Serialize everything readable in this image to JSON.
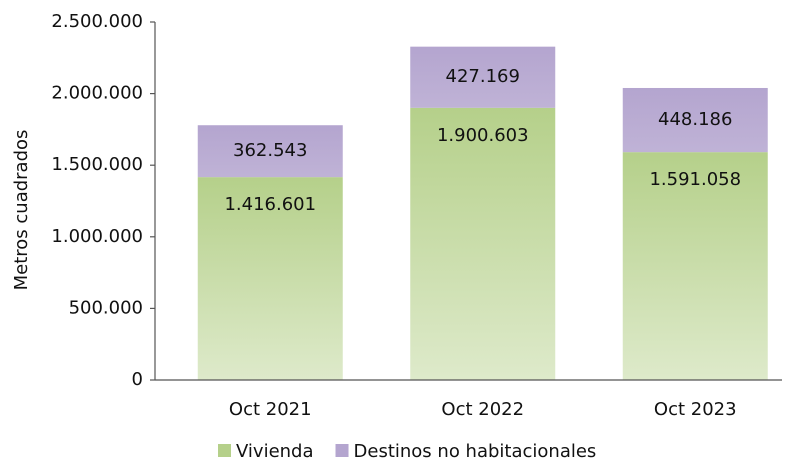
{
  "chart_data": {
    "type": "stacked_bar",
    "y_label": "Metros cuadrados",
    "categories": [
      "Oct 2021",
      "Oct 2022",
      "Oct 2023"
    ],
    "series": [
      {
        "name": "Vivienda",
        "color": "#b5d08a",
        "values": [
          1416601,
          1900603,
          1591058
        ],
        "value_labels": [
          "1.416.601",
          "1.900.603",
          "1.591.058"
        ]
      },
      {
        "name": "Destinos no habitacionales",
        "color": "#b4a5cf",
        "values": [
          362543,
          427169,
          448186
        ],
        "value_labels": [
          "362.543",
          "427.169",
          "448.186"
        ]
      }
    ],
    "ylim": [
      0,
      2500000
    ],
    "yticks": [
      0,
      {
        "value": 500000,
        "label": "500.000"
      },
      {
        "value": 1000000,
        "label": "1.000.000"
      },
      {
        "value": 1500000,
        "label": "1.500.000"
      },
      {
        "value": 2000000,
        "label": "2.000.000"
      },
      {
        "value": 2500000,
        "label": "2.500.000"
      }
    ],
    "grid": false,
    "legend": "bottom"
  }
}
